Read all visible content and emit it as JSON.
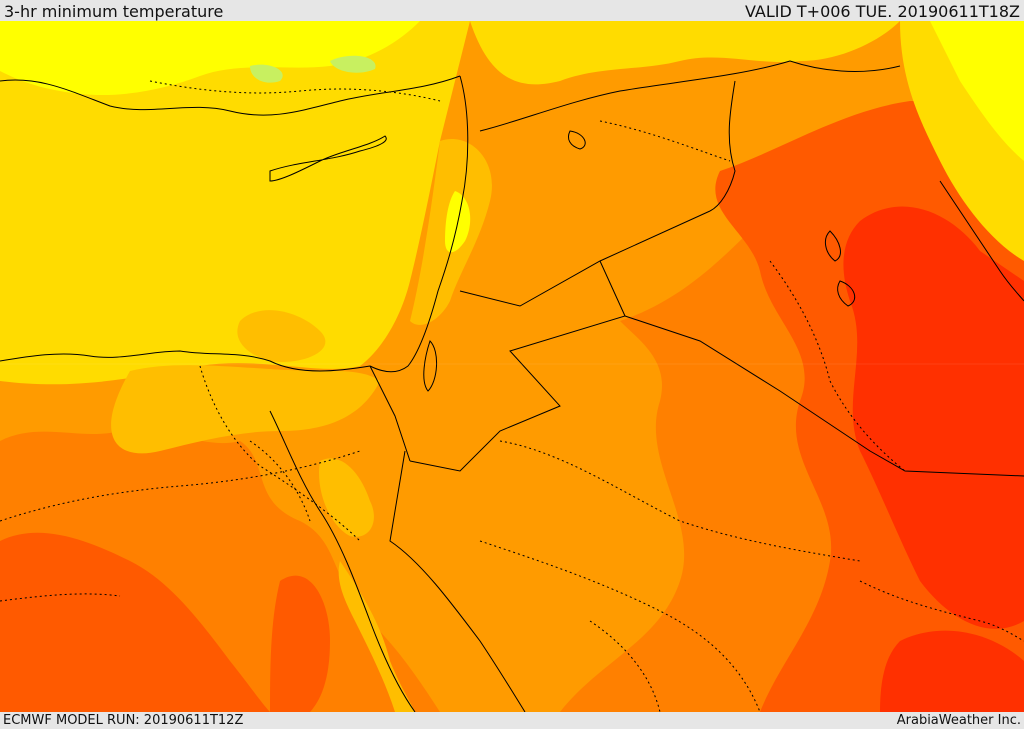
{
  "header": {
    "title": "3-hr minimum temperature",
    "valid": "VALID T+006 TUE. 20190611T18Z"
  },
  "footer": {
    "model_run": "ECMWF MODEL RUN: 20190611T12Z",
    "credit": "ArabiaWeather Inc."
  },
  "map": {
    "region": "Eastern Mediterranean / Levant / Arabian Peninsula",
    "field": "minimum temperature",
    "palette": {
      "cool_green": "#c8f060",
      "light_yellow": "#ffff00",
      "yellow": "#ffdc00",
      "light_orange": "#ffbe00",
      "orange": "#ff9b00",
      "dark_orange": "#ff8000",
      "red_orange": "#ff5a00",
      "red": "#ff3000",
      "sea": "#ffdc00",
      "coastline": "#000000",
      "border": "#000000"
    }
  }
}
